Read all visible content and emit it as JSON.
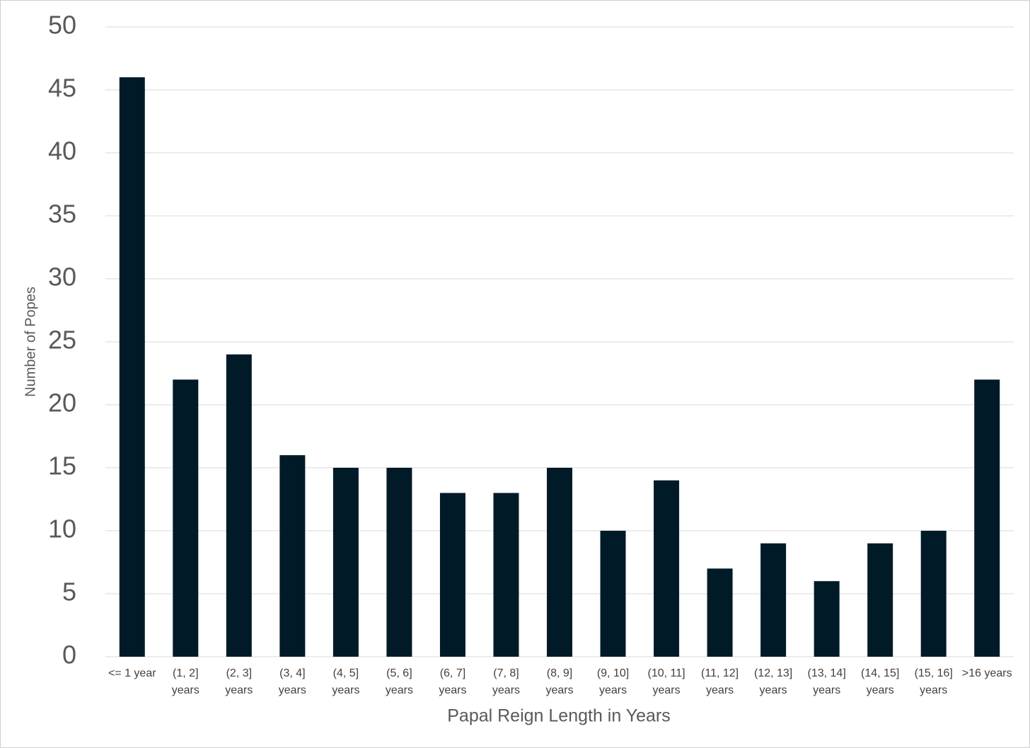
{
  "chart_data": {
    "type": "bar",
    "x_label": "Papal Reign Length in Years",
    "y_label": "Number of Popes",
    "categories": [
      "<= 1 year",
      "(1, 2]\nyears",
      "(2, 3]\nyears",
      "(3, 4]\nyears",
      "(4, 5]\nyears",
      "(5, 6]\nyears",
      "(6, 7]\nyears",
      "(7, 8]\nyears",
      "(8, 9]\nyears",
      "(9, 10]\nyears",
      "(10, 11]\nyears",
      "(11, 12]\nyears",
      "(12, 13]\nyears",
      "(13, 14]\nyears",
      "(14, 15]\nyears",
      "(15, 16]\nyears",
      ">16 years"
    ],
    "values": [
      46,
      22,
      24,
      16,
      15,
      15,
      13,
      13,
      15,
      10,
      14,
      7,
      9,
      6,
      9,
      10,
      22
    ],
    "color": "#011a28",
    "ylim": [
      0,
      50
    ],
    "yticks": [
      0,
      5,
      10,
      15,
      20,
      25,
      30,
      35,
      40,
      45,
      50
    ],
    "grid": true
  }
}
